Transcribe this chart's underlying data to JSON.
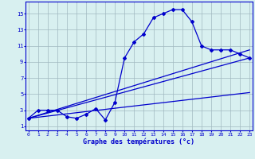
{
  "xlabel": "Graphe des températures (°c)",
  "bg_color": "#d8f0f0",
  "grid_color": "#a0b8c0",
  "line_color": "#0000cc",
  "x_hours": [
    0,
    1,
    2,
    3,
    4,
    5,
    6,
    7,
    8,
    9,
    10,
    11,
    12,
    13,
    14,
    15,
    16,
    17,
    18,
    19,
    20,
    21,
    22,
    23
  ],
  "temp_curve": [
    2.0,
    3.0,
    3.0,
    3.0,
    2.2,
    2.0,
    2.5,
    3.2,
    1.8,
    4.0,
    9.5,
    11.5,
    12.5,
    14.5,
    15.0,
    15.5,
    15.5,
    14.0,
    11.0,
    10.5,
    10.5,
    10.5,
    10.0,
    9.5
  ],
  "trend_line1_x": [
    0,
    23
  ],
  "trend_line1_y": [
    2.0,
    10.5
  ],
  "trend_line2_x": [
    0,
    23
  ],
  "trend_line2_y": [
    2.0,
    9.5
  ],
  "trend_line3_x": [
    0,
    23
  ],
  "trend_line3_y": [
    2.0,
    5.2
  ],
  "yticks": [
    1,
    3,
    5,
    7,
    9,
    11,
    13,
    15
  ],
  "xticks": [
    0,
    1,
    2,
    3,
    4,
    5,
    6,
    7,
    8,
    9,
    10,
    11,
    12,
    13,
    14,
    15,
    16,
    17,
    18,
    19,
    20,
    21,
    22,
    23
  ],
  "ylim": [
    0.5,
    16.5
  ],
  "xlim": [
    -0.3,
    23.3
  ]
}
